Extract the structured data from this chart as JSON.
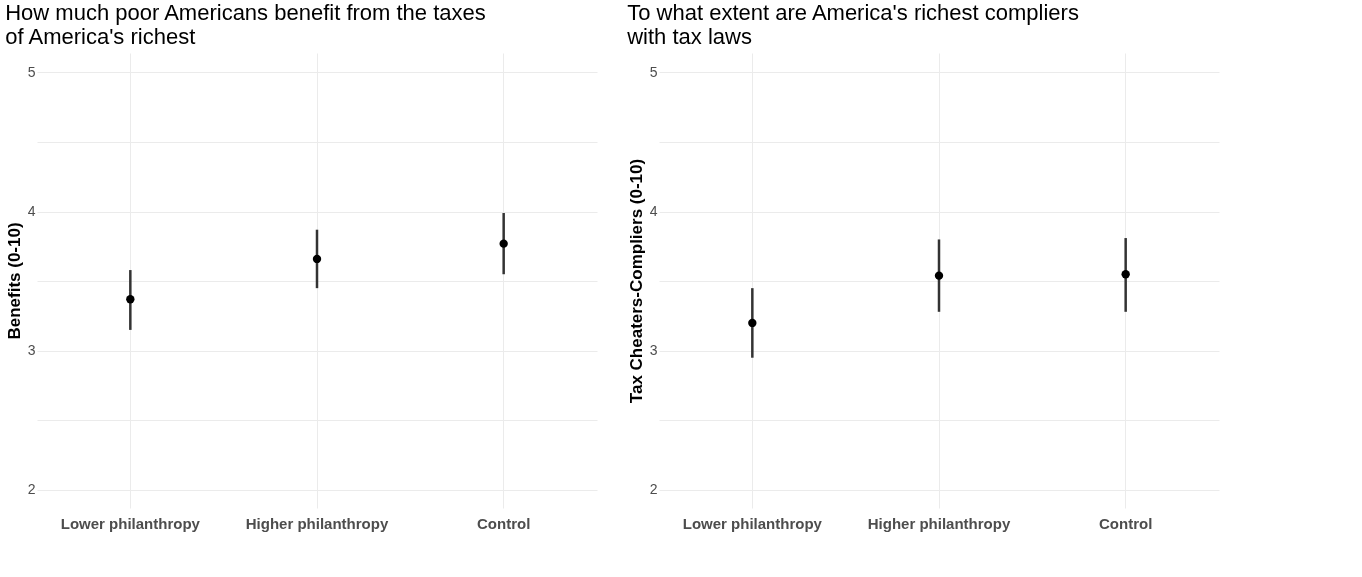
{
  "chart_data": [
    {
      "type": "scatter",
      "title": "How much poor Americans benefit from the taxes\n of America's richest",
      "ylabel": "Benefits (0-10)",
      "categories": [
        "Lower philanthropy",
        "Higher philanthropy",
        "Control"
      ],
      "values": [
        3.37,
        3.66,
        3.77
      ],
      "errors": [
        [
          3.15,
          3.58
        ],
        [
          3.45,
          3.87
        ],
        [
          3.55,
          3.99
        ]
      ],
      "color": "#000000",
      "marker": "circle",
      "ylim": [
        1.87,
        5.14
      ],
      "yticks": [
        2,
        {
          "value": 2.5,
          "label": null
        },
        3,
        {
          "value": 3.5,
          "label": null
        },
        4,
        {
          "value": 4.5,
          "label": null
        },
        5
      ],
      "grid": true
    },
    {
      "type": "scatter",
      "title": "To what extent are America's richest compliers\n with tax laws",
      "ylabel": "Tax Cheaters-Compliers (0-10)",
      "categories": [
        "Lower philanthropy",
        "Higher philanthropy",
        "Control"
      ],
      "values": [
        3.2,
        3.54,
        3.55
      ],
      "errors": [
        [
          2.95,
          3.45
        ],
        [
          3.28,
          3.8
        ],
        [
          3.28,
          3.81
        ]
      ],
      "color": "#000000",
      "marker": "circle",
      "ylim": [
        1.87,
        5.14
      ],
      "yticks": [
        2,
        {
          "value": 2.5,
          "label": null
        },
        3,
        {
          "value": 3.5,
          "label": null
        },
        4,
        {
          "value": 4.5,
          "label": null
        },
        5
      ],
      "grid": true
    }
  ]
}
